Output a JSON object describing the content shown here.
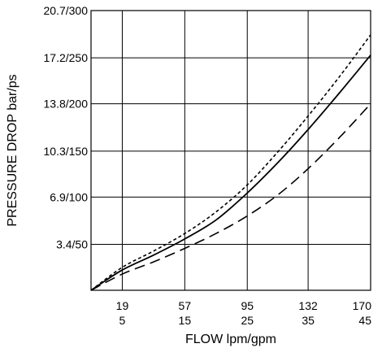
{
  "chart_data": {
    "type": "line",
    "xlabel": "FLOW lpm/gpm",
    "ylabel": "PRESSURE DROP bar/ps",
    "xlim": [
      0,
      170
    ],
    "ylim": [
      0,
      20.7
    ],
    "grid": true,
    "x_ticks": [
      {
        "value": 19,
        "line1": "19",
        "line2": "5"
      },
      {
        "value": 57,
        "line1": "57",
        "line2": "15"
      },
      {
        "value": 95,
        "line1": "95",
        "line2": "25"
      },
      {
        "value": 132,
        "line1": "132",
        "line2": "35"
      },
      {
        "value": 170,
        "line1": "170",
        "line2": "45"
      }
    ],
    "y_ticks": [
      {
        "value": 3.4,
        "label": "3.4/50"
      },
      {
        "value": 6.9,
        "label": "6.9/100"
      },
      {
        "value": 10.3,
        "label": "10.3/150"
      },
      {
        "value": 13.8,
        "label": "13.8/200"
      },
      {
        "value": 17.2,
        "label": "17.2/250"
      },
      {
        "value": 20.7,
        "label": "20.7/300"
      }
    ],
    "series": [
      {
        "style": "dotted",
        "color": "#000000",
        "x": [
          0,
          19,
          38,
          57,
          76,
          95,
          114,
          132,
          151,
          170
        ],
        "y": [
          0,
          1.7,
          2.9,
          4.2,
          5.8,
          7.8,
          10.3,
          12.9,
          15.8,
          18.9
        ]
      },
      {
        "style": "solid",
        "color": "#000000",
        "x": [
          0,
          19,
          38,
          57,
          76,
          95,
          114,
          132,
          151,
          170
        ],
        "y": [
          0,
          1.5,
          2.6,
          3.8,
          5.2,
          7.2,
          9.5,
          11.9,
          14.6,
          17.4
        ]
      },
      {
        "style": "dashed",
        "color": "#000000",
        "x": [
          0,
          19,
          38,
          57,
          76,
          95,
          114,
          132,
          151,
          170
        ],
        "y": [
          0,
          1.2,
          2.1,
          3.1,
          4.2,
          5.5,
          7.1,
          9.0,
          11.3,
          13.8
        ]
      }
    ]
  }
}
